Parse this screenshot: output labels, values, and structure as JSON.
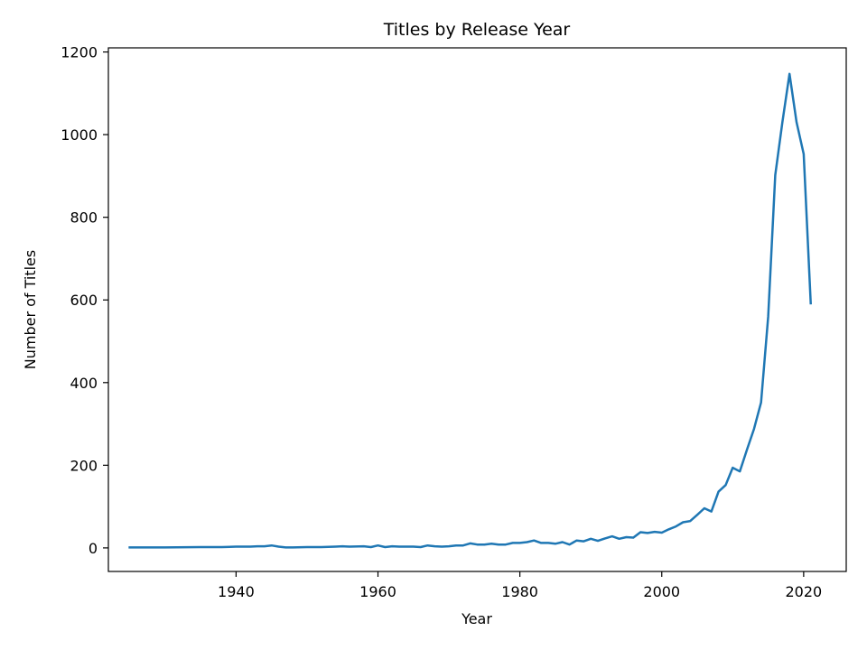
{
  "chart_data": {
    "type": "line",
    "title": "Titles by Release Year",
    "xlabel": "Year",
    "ylabel": "Number of Titles",
    "xlim": [
      1922,
      2026
    ],
    "ylim": [
      -57,
      1210
    ],
    "xticks": [
      1940,
      1960,
      1980,
      2000,
      2020
    ],
    "yticks": [
      0,
      200,
      400,
      600,
      800,
      1000,
      1200
    ],
    "grid": false,
    "line_color": "#1f77b4",
    "series": [
      {
        "name": "titles",
        "x": [
          1925,
          1930,
          1935,
          1938,
          1940,
          1942,
          1943,
          1944,
          1945,
          1946,
          1947,
          1948,
          1950,
          1952,
          1954,
          1955,
          1956,
          1958,
          1959,
          1960,
          1961,
          1962,
          1963,
          1964,
          1965,
          1966,
          1967,
          1968,
          1969,
          1970,
          1971,
          1972,
          1973,
          1974,
          1975,
          1976,
          1977,
          1978,
          1979,
          1980,
          1981,
          1982,
          1983,
          1984,
          1985,
          1986,
          1987,
          1988,
          1989,
          1990,
          1991,
          1992,
          1993,
          1994,
          1995,
          1996,
          1997,
          1998,
          1999,
          2000,
          2001,
          2002,
          2003,
          2004,
          2005,
          2006,
          2007,
          2008,
          2009,
          2010,
          2011,
          2012,
          2013,
          2014,
          2015,
          2016,
          2017,
          2018,
          2019,
          2020,
          2021
        ],
        "values": [
          1,
          1,
          2,
          2,
          3,
          3,
          4,
          4,
          6,
          3,
          1,
          1,
          2,
          2,
          3,
          4,
          3,
          4,
          2,
          6,
          2,
          4,
          3,
          3,
          3,
          2,
          6,
          4,
          3,
          4,
          6,
          6,
          11,
          8,
          8,
          10,
          8,
          8,
          12,
          12,
          14,
          18,
          12,
          12,
          10,
          14,
          8,
          18,
          16,
          22,
          17,
          23,
          28,
          22,
          26,
          25,
          38,
          36,
          39,
          37,
          45,
          52,
          62,
          65,
          80,
          96,
          88,
          136,
          152,
          194,
          185,
          237,
          288,
          352,
          560,
          902,
          1030,
          1147,
          1030,
          953,
          592
        ]
      }
    ]
  }
}
